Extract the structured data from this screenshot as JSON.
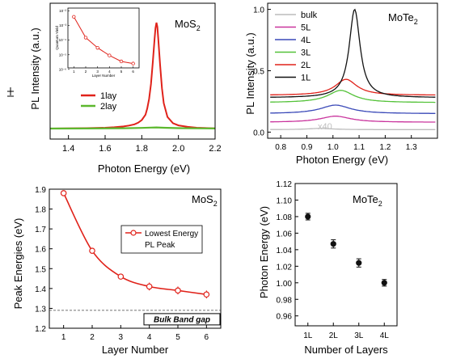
{
  "chart_data": [
    {
      "type": "line",
      "label": "MoS",
      "label_sub": "2",
      "xlabel": "Photon Energy (eV)",
      "ylabel": "PL Intensity (a.u.)",
      "xlim": [
        1.3,
        2.2
      ],
      "xticks": [
        "1.4",
        "1.6",
        "1.8",
        "2.0",
        "2.2"
      ],
      "legend_position": "center-left",
      "series": [
        {
          "name": "1lay",
          "color": "#e0221a",
          "x": [
            1.3,
            1.5,
            1.6,
            1.65,
            1.7,
            1.73,
            1.76,
            1.78,
            1.8,
            1.82,
            1.83,
            1.84,
            1.85,
            1.86,
            1.87,
            1.875,
            1.88,
            1.885,
            1.89,
            1.9,
            1.91,
            1.92,
            1.94,
            1.97,
            2.0,
            2.05,
            2.1,
            2.2
          ],
          "y": [
            0.0,
            0.004,
            0.008,
            0.012,
            0.02,
            0.028,
            0.04,
            0.055,
            0.08,
            0.13,
            0.19,
            0.28,
            0.42,
            0.62,
            0.85,
            0.95,
            1.0,
            0.96,
            0.85,
            0.6,
            0.38,
            0.24,
            0.11,
            0.05,
            0.03,
            0.016,
            0.008,
            0.002
          ]
        },
        {
          "name": "2lay",
          "color": "#5cb82e",
          "x": [
            1.3,
            1.5,
            1.7,
            1.8,
            1.85,
            1.88,
            1.92,
            2.0,
            2.2
          ],
          "y": [
            0.0,
            0.001,
            0.003,
            0.006,
            0.009,
            0.011,
            0.008,
            0.004,
            0.001
          ]
        }
      ],
      "inset": {
        "type": "line",
        "xlabel": "Layer Number",
        "ylabel": "Quantum Yield",
        "xticks": [
          "1",
          "2",
          "3",
          "4",
          "5",
          "6"
        ],
        "yticks": [
          "10⁻²",
          "10⁻³",
          "10⁻⁴",
          "10⁻⁵",
          "10⁻⁶"
        ],
        "log_scale_y": true,
        "x": [
          1,
          2,
          3,
          4,
          5,
          6
        ],
        "y": [
          0.004,
          0.00015,
          3e-05,
          9e-06,
          3.5e-06,
          2.5e-06
        ],
        "color": "#e0221a"
      }
    },
    {
      "type": "line",
      "label": "MoTe",
      "label_sub": "2",
      "xlabel": "Photon Energy (eV)",
      "ylabel": "PL Intensity (a.u.)",
      "xlim": [
        0.75,
        1.4
      ],
      "ylim": [
        -0.05,
        1.05
      ],
      "xticks": [
        "0.8",
        "0.9",
        "1.0",
        "1.1",
        "1.2",
        "1.3"
      ],
      "yticks": [
        "0.0",
        "0.5",
        "1.0"
      ],
      "annotation": "x40",
      "legend_position": "top-left",
      "series": [
        {
          "name": "bulk",
          "color": "#bbbbbb",
          "baseline": 0.02,
          "peak": 0.01,
          "center": 0.95,
          "width": 0.06
        },
        {
          "name": "5L",
          "color": "#c9349d",
          "baseline": 0.08,
          "peak": 0.05,
          "center": 1.01,
          "width": 0.07
        },
        {
          "name": "4L",
          "color": "#3a49b8",
          "baseline": 0.15,
          "peak": 0.07,
          "center": 1.01,
          "width": 0.07
        },
        {
          "name": "3L",
          "color": "#54c239",
          "baseline": 0.24,
          "peak": 0.1,
          "center": 1.03,
          "width": 0.06
        },
        {
          "name": "2L",
          "color": "#e0221a",
          "baseline": 0.3,
          "peak": 0.13,
          "center": 1.05,
          "width": 0.05
        },
        {
          "name": "1L",
          "color": "#111111",
          "baseline": 0.28,
          "peak": 0.72,
          "center": 1.083,
          "width": 0.025
        }
      ]
    },
    {
      "type": "line",
      "label": "MoS",
      "label_sub": "2",
      "xlabel": "Layer Number",
      "ylabel": "Peak Energies (eV)",
      "xlim": [
        0.5,
        6.5
      ],
      "ylim": [
        1.2,
        1.9
      ],
      "xticks": [
        "1",
        "2",
        "3",
        "4",
        "5",
        "6"
      ],
      "yticks": [
        "1.2",
        "1.3",
        "1.4",
        "1.5",
        "1.6",
        "1.7",
        "1.8",
        "1.9"
      ],
      "legend": "Lowest Energy\nPL Peak",
      "legend_position": "center-right",
      "reference_line": {
        "y": 1.29,
        "label": "Bulk Band gap"
      },
      "series": [
        {
          "name": "Lowest Energy PL Peak",
          "color": "#e0221a",
          "x": [
            1,
            2,
            3,
            4,
            5,
            6
          ],
          "y": [
            1.88,
            1.59,
            1.46,
            1.41,
            1.39,
            1.37
          ],
          "err": [
            0.005,
            0.01,
            0.01,
            0.02,
            0.02,
            0.02
          ]
        }
      ]
    },
    {
      "type": "scatter",
      "label": "MoTe",
      "label_sub": "2",
      "xlabel": "Number of Layers",
      "ylabel": "Photon Energy (eV)",
      "categories": [
        "1L",
        "2L",
        "3L",
        "4L"
      ],
      "ylim": [
        0.95,
        1.12
      ],
      "yticks": [
        "0.96",
        "0.98",
        "1.00",
        "1.02",
        "1.04",
        "1.06",
        "1.08",
        "1.10",
        "1.12"
      ],
      "series": [
        {
          "color": "#111111",
          "values": [
            1.08,
            1.047,
            1.024,
            1.0
          ],
          "err": [
            0.004,
            0.005,
            0.005,
            0.004
          ]
        }
      ]
    }
  ]
}
